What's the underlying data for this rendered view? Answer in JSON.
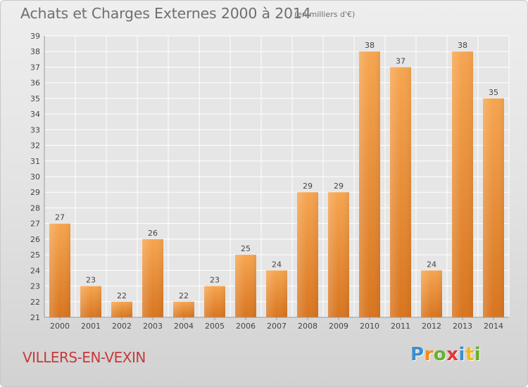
{
  "header": {
    "title": "Achats et Charges Externes 2000 à 2014",
    "subtitle": "(en milliers d'€)"
  },
  "footer": {
    "place": "VILLERS-EN-VEXIN",
    "logo": {
      "text": "Proxiti",
      "letters": [
        {
          "ch": "P",
          "color": "#3b8fd0"
        },
        {
          "ch": "r",
          "color": "#f08a1c"
        },
        {
          "ch": "o",
          "color": "#69b02c"
        },
        {
          "ch": "x",
          "color": "#e03838"
        },
        {
          "ch": "i",
          "color": "#3b8fd0"
        },
        {
          "ch": "t",
          "color": "#f0b81c"
        },
        {
          "ch": "i",
          "color": "#69b02c"
        }
      ]
    }
  },
  "colors": {
    "bar_top": "#f6a550",
    "bar_bottom": "#d8751f",
    "place": "#c63a3a",
    "grid": "#ffffff"
  },
  "chart_data": {
    "type": "bar",
    "title": "Achats et Charges Externes 2000 à 2014",
    "subtitle": "(en milliers d'€)",
    "categories": [
      "2000",
      "2001",
      "2002",
      "2003",
      "2004",
      "2005",
      "2006",
      "2007",
      "2008",
      "2009",
      "2010",
      "2011",
      "2012",
      "2013",
      "2014"
    ],
    "values": [
      27,
      23,
      22,
      26,
      22,
      23,
      25,
      24,
      29,
      29,
      38,
      37,
      24,
      38,
      35
    ],
    "ylim": [
      21,
      39
    ],
    "ytick_step": 1,
    "grid": true,
    "legend": "none"
  }
}
